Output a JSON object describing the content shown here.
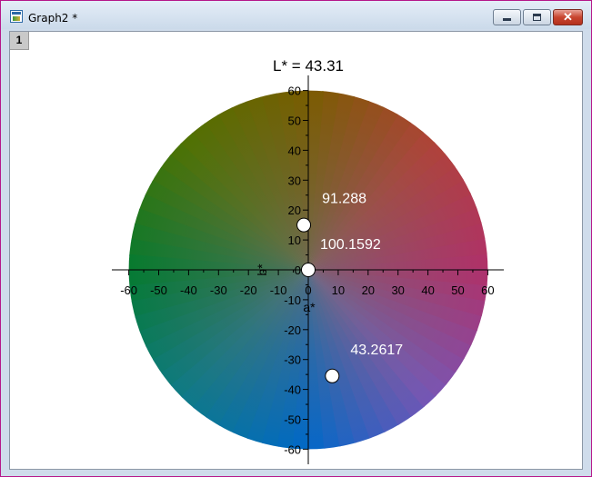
{
  "window": {
    "title": "Graph2 *",
    "layer_label": "1",
    "close_glyph": "✕"
  },
  "chart_data": {
    "type": "scatter",
    "title": "L* = 43.31",
    "xlabel": "a*",
    "ylabel": "b*",
    "xlim": [
      -60,
      60
    ],
    "ylim": [
      -60,
      60
    ],
    "x_ticks": [
      -60,
      -50,
      -40,
      -30,
      -20,
      -10,
      0,
      10,
      20,
      30,
      40,
      50,
      60
    ],
    "y_ticks": [
      -60,
      -50,
      -40,
      -30,
      -20,
      -10,
      0,
      10,
      20,
      30,
      40,
      50,
      60
    ],
    "background": "CIELAB a*-b* color disc at L* = 43.31",
    "points": [
      {
        "x": -1.5,
        "y": 15,
        "label": "91.288"
      },
      {
        "x": 0,
        "y": 0,
        "label": "100.1592"
      },
      {
        "x": 8,
        "y": -35.5,
        "label": "43.2617"
      }
    ],
    "disc_colors": {
      "top": "#7a5c00",
      "top_left": "#4e7202",
      "left": "#047a30",
      "bottom_left": "#0f7a86",
      "bottom": "#0068c8",
      "bottom_right": "#7a55b4",
      "right": "#b0306a",
      "top_right": "#b0423a",
      "center": "#6e6e6e"
    }
  }
}
